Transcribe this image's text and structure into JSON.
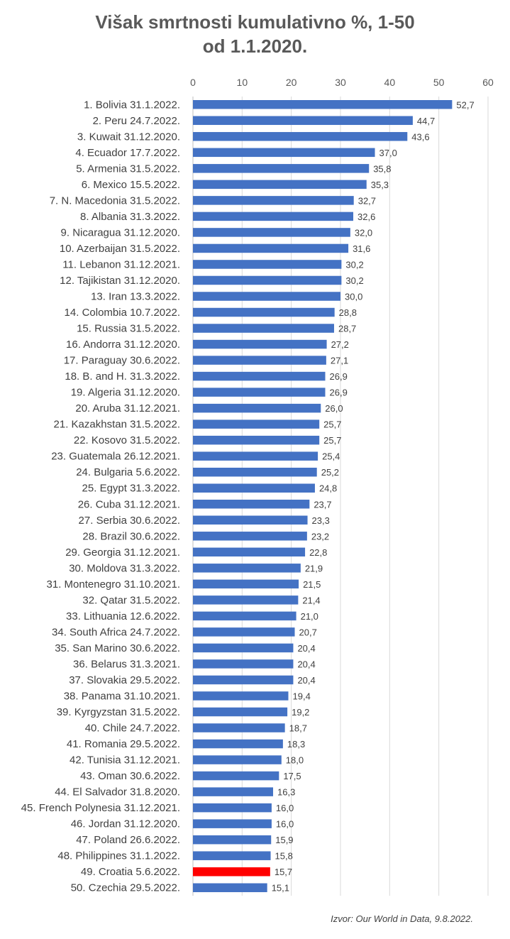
{
  "chart_data": {
    "type": "bar",
    "orientation": "horizontal",
    "title_lines": [
      "Višak smrtnosti kumulativno %, 1-50",
      "od 1.1.2020."
    ],
    "xlim": [
      0,
      60
    ],
    "xticks": [
      "0",
      "10",
      "20",
      "30",
      "40",
      "50",
      "60"
    ],
    "xtick_values": [
      0,
      10,
      20,
      30,
      40,
      50,
      60
    ],
    "grid": true,
    "bar_color": "#4472C4",
    "highlight_color": "#FF0000",
    "highlight_category": "49. Croatia 5.6.2022.",
    "categories": [
      "1. Bolivia 31.1.2022.",
      "2. Peru 24.7.2022.",
      "3. Kuwait 31.12.2020.",
      "4. Ecuador 17.7.2022.",
      "5. Armenia 31.5.2022.",
      "6. Mexico 15.5.2022.",
      "7. N. Macedonia 31.5.2022.",
      "8. Albania 31.3.2022.",
      "9. Nicaragua 31.12.2020.",
      "10. Azerbaijan 31.5.2022.",
      "11. Lebanon 31.12.2021.",
      "12. Tajikistan 31.12.2020.",
      "13. Iran 13.3.2022.",
      "14. Colombia 10.7.2022.",
      "15. Russia 31.5.2022.",
      "16. Andorra 31.12.2020.",
      "17. Paraguay 30.6.2022.",
      "18. B. and H. 31.3.2022.",
      "19. Algeria 31.12.2020.",
      "20. Aruba 31.12.2021.",
      "21. Kazakhstan 31.5.2022.",
      "22. Kosovo 31.5.2022.",
      "23. Guatemala 26.12.2021.",
      "24. Bulgaria 5.6.2022.",
      "25. Egypt 31.3.2022.",
      "26. Cuba 31.12.2021.",
      "27. Serbia 30.6.2022.",
      "28. Brazil 30.6.2022.",
      "29. Georgia 31.12.2021.",
      "30. Moldova 31.3.2022.",
      "31. Montenegro 31.10.2021.",
      "32. Qatar 31.5.2022.",
      "33. Lithuania 12.6.2022.",
      "34. South Africa 24.7.2022.",
      "35. San Marino 30.6.2022.",
      "36. Belarus 31.3.2021.",
      "37. Slovakia 29.5.2022.",
      "38. Panama 31.10.2021.",
      "39. Kyrgyzstan 31.5.2022.",
      "40. Chile 24.7.2022.",
      "41. Romania 29.5.2022.",
      "42. Tunisia 31.12.2021.",
      "43. Oman 30.6.2022.",
      "44. El Salvador 31.8.2020.",
      "45. French Polynesia 31.12.2021.",
      "46. Jordan 31.12.2020.",
      "47. Poland 26.6.2022.",
      "48. Philippines 31.1.2022.",
      "49. Croatia 5.6.2022.",
      "50. Czechia 29.5.2022."
    ],
    "values": [
      52.7,
      44.7,
      43.6,
      37.0,
      35.8,
      35.3,
      32.7,
      32.6,
      32.0,
      31.6,
      30.2,
      30.2,
      30.0,
      28.8,
      28.7,
      27.2,
      27.1,
      26.9,
      26.9,
      26.0,
      25.7,
      25.7,
      25.4,
      25.2,
      24.8,
      23.7,
      23.3,
      23.2,
      22.8,
      21.9,
      21.5,
      21.4,
      21.0,
      20.7,
      20.4,
      20.4,
      20.4,
      19.4,
      19.2,
      18.7,
      18.3,
      18.0,
      17.5,
      16.3,
      16.0,
      16.0,
      15.9,
      15.8,
      15.7,
      15.1
    ],
    "value_labels": [
      "52,7",
      "44,7",
      "43,6",
      "37,0",
      "35,8",
      "35,3",
      "32,7",
      "32,6",
      "32,0",
      "31,6",
      "30,2",
      "30,2",
      "30,0",
      "28,8",
      "28,7",
      "27,2",
      "27,1",
      "26,9",
      "26,9",
      "26,0",
      "25,7",
      "25,7",
      "25,4",
      "25,2",
      "24,8",
      "23,7",
      "23,3",
      "23,2",
      "22,8",
      "21,9",
      "21,5",
      "21,4",
      "21,0",
      "20,7",
      "20,4",
      "20,4",
      "20,4",
      "19,4",
      "19,2",
      "18,7",
      "18,3",
      "18,0",
      "17,5",
      "16,3",
      "16,0",
      "16,0",
      "15,9",
      "15,8",
      "15,7",
      "15,1"
    ],
    "source": "Izvor: Our World in Data, 9.8.2022."
  }
}
